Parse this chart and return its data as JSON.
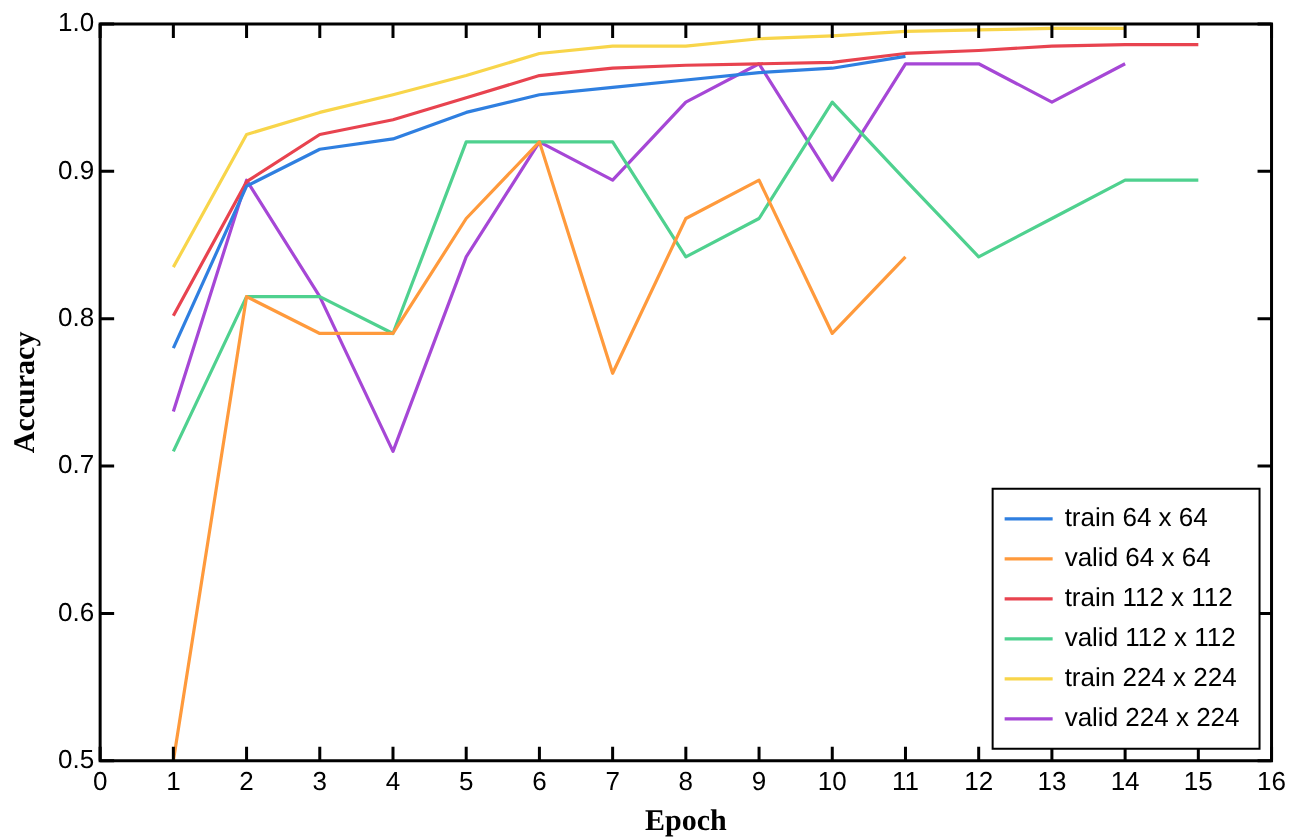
{
  "chart_data": {
    "type": "line",
    "xlabel": "Epoch",
    "ylabel": "Accuracy",
    "xlim": [
      0,
      16
    ],
    "xticks": [
      0,
      1,
      2,
      3,
      4,
      5,
      6,
      7,
      8,
      9,
      10,
      11,
      12,
      13,
      14,
      15,
      16
    ],
    "ylim": [
      0.5,
      1.0
    ],
    "yticks": [
      0.5,
      0.6,
      0.7,
      0.8,
      0.9,
      {
        "value": 1.0,
        "label": "1.0"
      }
    ],
    "grid": false,
    "legend": "bottom right",
    "marker": "none",
    "line_style": "solid",
    "series": [
      {
        "name": "train 64 x 64",
        "color": "#2f7fe0",
        "x": [
          1,
          2,
          3,
          4,
          5,
          6,
          7,
          8,
          9,
          10,
          11
        ],
        "values": [
          0.78,
          0.89,
          0.915,
          0.922,
          0.94,
          0.952,
          0.957,
          0.962,
          0.967,
          0.97,
          0.978
        ]
      },
      {
        "name": "valid 64 x 64",
        "color": "#ff9a3c",
        "x": [
          1,
          2,
          3,
          4,
          5,
          6,
          7,
          8,
          9,
          10,
          11
        ],
        "values": [
          0.5,
          0.815,
          0.79,
          0.79,
          0.868,
          0.92,
          0.763,
          0.868,
          0.894,
          0.79,
          0.842
        ]
      },
      {
        "name": "train 112 x 112",
        "color": "#e8434f",
        "x": [
          1,
          2,
          3,
          4,
          5,
          6,
          7,
          8,
          9,
          10,
          11,
          12,
          13,
          14,
          15
        ],
        "values": [
          0.802,
          0.893,
          0.925,
          0.935,
          0.95,
          0.965,
          0.97,
          0.972,
          0.973,
          0.974,
          0.98,
          0.982,
          0.985,
          0.986,
          0.986
        ]
      },
      {
        "name": "valid 112 x 112",
        "color": "#4fd18f",
        "x": [
          1,
          2,
          3,
          4,
          5,
          6,
          7,
          8,
          9,
          10,
          11,
          12,
          13,
          14,
          15
        ],
        "values": [
          0.71,
          0.815,
          0.815,
          0.79,
          0.92,
          0.92,
          0.92,
          0.842,
          0.868,
          0.947,
          0.894,
          0.842,
          0.868,
          0.894,
          0.894
        ]
      },
      {
        "name": "train 224 x 224",
        "color": "#f8d54a",
        "x": [
          1,
          2,
          3,
          4,
          5,
          6,
          7,
          8,
          9,
          10,
          11,
          12,
          13,
          14
        ],
        "values": [
          0.835,
          0.925,
          0.94,
          0.952,
          0.965,
          0.98,
          0.985,
          0.985,
          0.99,
          0.992,
          0.995,
          0.996,
          0.997,
          0.997
        ]
      },
      {
        "name": "valid 224 x 224",
        "color": "#a647d6",
        "x": [
          1,
          2,
          3,
          4,
          5,
          6,
          7,
          8,
          9,
          10,
          11,
          12,
          13,
          14
        ],
        "values": [
          0.737,
          0.894,
          0.815,
          0.71,
          0.842,
          0.92,
          0.894,
          0.947,
          0.973,
          0.894,
          0.973,
          0.973,
          0.947,
          0.973
        ]
      }
    ]
  }
}
